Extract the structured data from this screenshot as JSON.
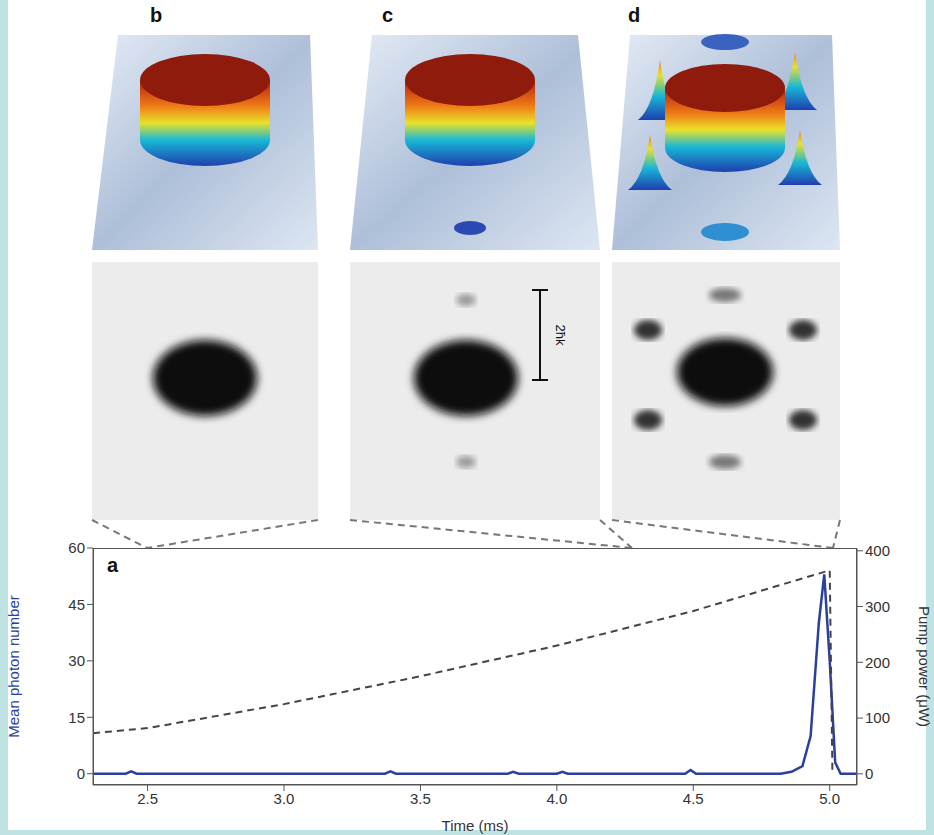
{
  "chart_data": {
    "type": "line",
    "panel_label": "a",
    "xlabel": "Time (ms)",
    "ylabel": "Mean photon number",
    "y2label": "Pump power (μW)",
    "xlim": [
      2.3,
      5.1
    ],
    "xticks": [
      2.5,
      {
        "value": 3,
        "label": "3.0"
      },
      3.5,
      {
        "value": 4,
        "label": "4.0"
      },
      4.5,
      {
        "value": 5,
        "label": "5.0"
      }
    ],
    "ylim": [
      -3,
      60
    ],
    "yticks": [
      0,
      15,
      30,
      45,
      60
    ],
    "y2lim": [
      -20,
      405
    ],
    "y2ticks": [
      0,
      100,
      200,
      300,
      400
    ],
    "series": [
      {
        "name": "Mean photon number",
        "color": "#2b3f9e",
        "line_style": "solid",
        "x": [
          2.3,
          2.42,
          2.44,
          2.46,
          3.37,
          3.39,
          3.41,
          3.82,
          3.84,
          3.86,
          4.0,
          4.02,
          4.04,
          4.47,
          4.49,
          4.51,
          4.82,
          4.86,
          4.9,
          4.93,
          4.96,
          4.98,
          5.0,
          5.02,
          5.04,
          5.1
        ],
        "values": [
          0,
          0,
          0.6,
          0,
          0,
          0.6,
          0,
          0,
          0.5,
          0,
          0,
          0.5,
          0,
          0,
          1,
          0,
          0,
          0.5,
          2,
          10,
          40,
          53,
          30,
          3,
          0,
          0
        ]
      },
      {
        "name": "Pump power (μW)",
        "color": "#444444",
        "line_style": "dashed",
        "axis": "y2",
        "x": [
          2.3,
          2.5,
          3.0,
          3.5,
          4.0,
          4.5,
          5.0,
          5.01
        ],
        "values": [
          73,
          82,
          125,
          175,
          230,
          292,
          365,
          0
        ]
      }
    ],
    "panels": [
      {
        "label": "b"
      },
      {
        "label": "c",
        "scale_bar": "2ħk"
      },
      {
        "label": "d"
      }
    ]
  }
}
